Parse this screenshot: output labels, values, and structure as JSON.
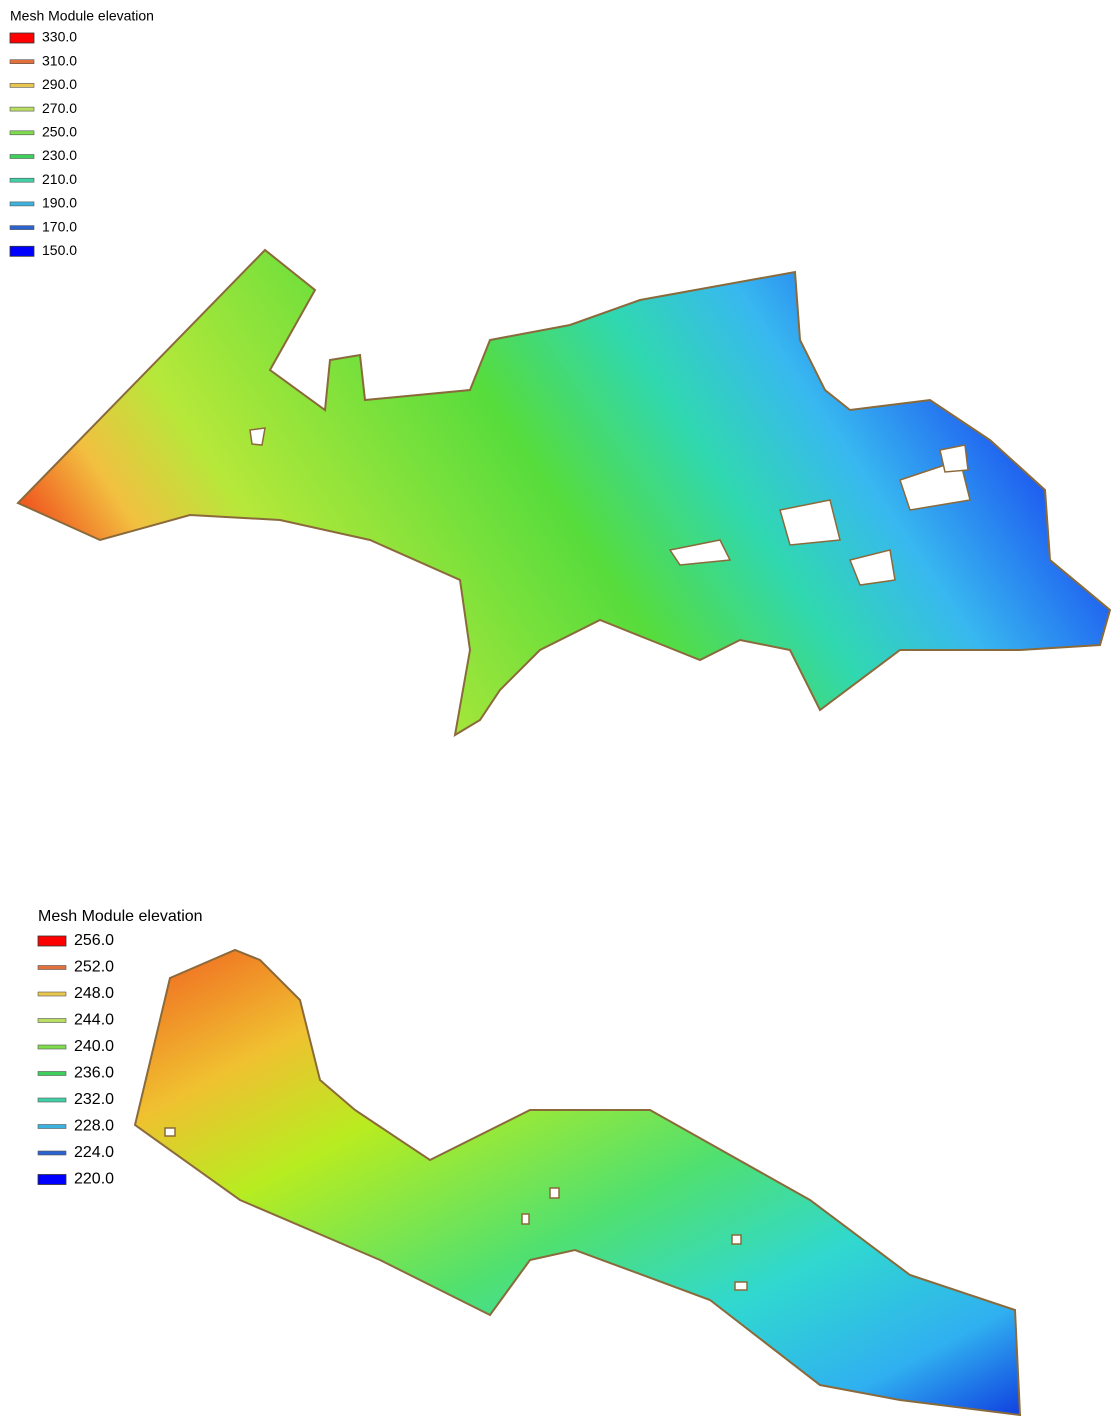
{
  "legends": [
    {
      "title": "Mesh Module elevation",
      "entries": [
        {
          "label": "330.0",
          "color": "#ff0000"
        },
        {
          "label": "310.0",
          "color": "#e2703c"
        },
        {
          "label": "290.0",
          "color": "#e8c650"
        },
        {
          "label": "270.0",
          "color": "#b9de62"
        },
        {
          "label": "250.0",
          "color": "#7fdc4e"
        },
        {
          "label": "230.0",
          "color": "#3fcf5c"
        },
        {
          "label": "210.0",
          "color": "#3fd0a6"
        },
        {
          "label": "190.0",
          "color": "#3cb2e0"
        },
        {
          "label": "170.0",
          "color": "#2a62cf"
        },
        {
          "label": "150.0",
          "color": "#0000ff"
        }
      ]
    },
    {
      "title": "Mesh Module elevation",
      "entries": [
        {
          "label": "256.0",
          "color": "#ff0000"
        },
        {
          "label": "252.0",
          "color": "#e2703c"
        },
        {
          "label": "248.0",
          "color": "#e8c650"
        },
        {
          "label": "244.0",
          "color": "#b9de62"
        },
        {
          "label": "240.0",
          "color": "#7fdc4e"
        },
        {
          "label": "236.0",
          "color": "#3fcf5c"
        },
        {
          "label": "232.0",
          "color": "#3fd0a6"
        },
        {
          "label": "228.0",
          "color": "#3cb2e0"
        },
        {
          "label": "224.0",
          "color": "#2a62cf"
        },
        {
          "label": "220.0",
          "color": "#0000ff"
        }
      ]
    }
  ]
}
